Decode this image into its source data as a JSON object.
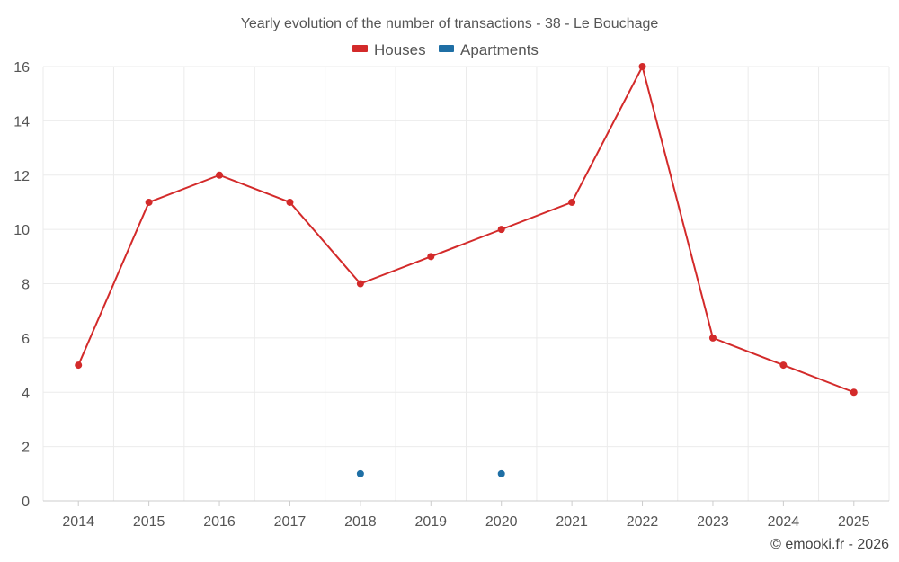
{
  "chart_data": {
    "type": "line",
    "title": "Yearly evolution of the number of transactions - 38 - Le Bouchage",
    "xlabel": "",
    "ylabel": "",
    "categories": [
      "2014",
      "2015",
      "2016",
      "2017",
      "2018",
      "2019",
      "2020",
      "2021",
      "2022",
      "2023",
      "2024",
      "2025"
    ],
    "yticks": [
      "0",
      "2",
      "4",
      "6",
      "8",
      "10",
      "12",
      "14",
      "16"
    ],
    "ylim": [
      0,
      16
    ],
    "grid": true,
    "legend_position": "top-center",
    "series": [
      {
        "name": "Houses",
        "color": "#d32a2a",
        "values": [
          5,
          11,
          12,
          11,
          8,
          9,
          10,
          11,
          16,
          6,
          5,
          4
        ]
      },
      {
        "name": "Apartments",
        "color": "#1f6fa5",
        "values": [
          null,
          null,
          null,
          null,
          1,
          null,
          1,
          null,
          null,
          null,
          null,
          null
        ]
      }
    ]
  },
  "credit": "© emooki.fr - 2026"
}
